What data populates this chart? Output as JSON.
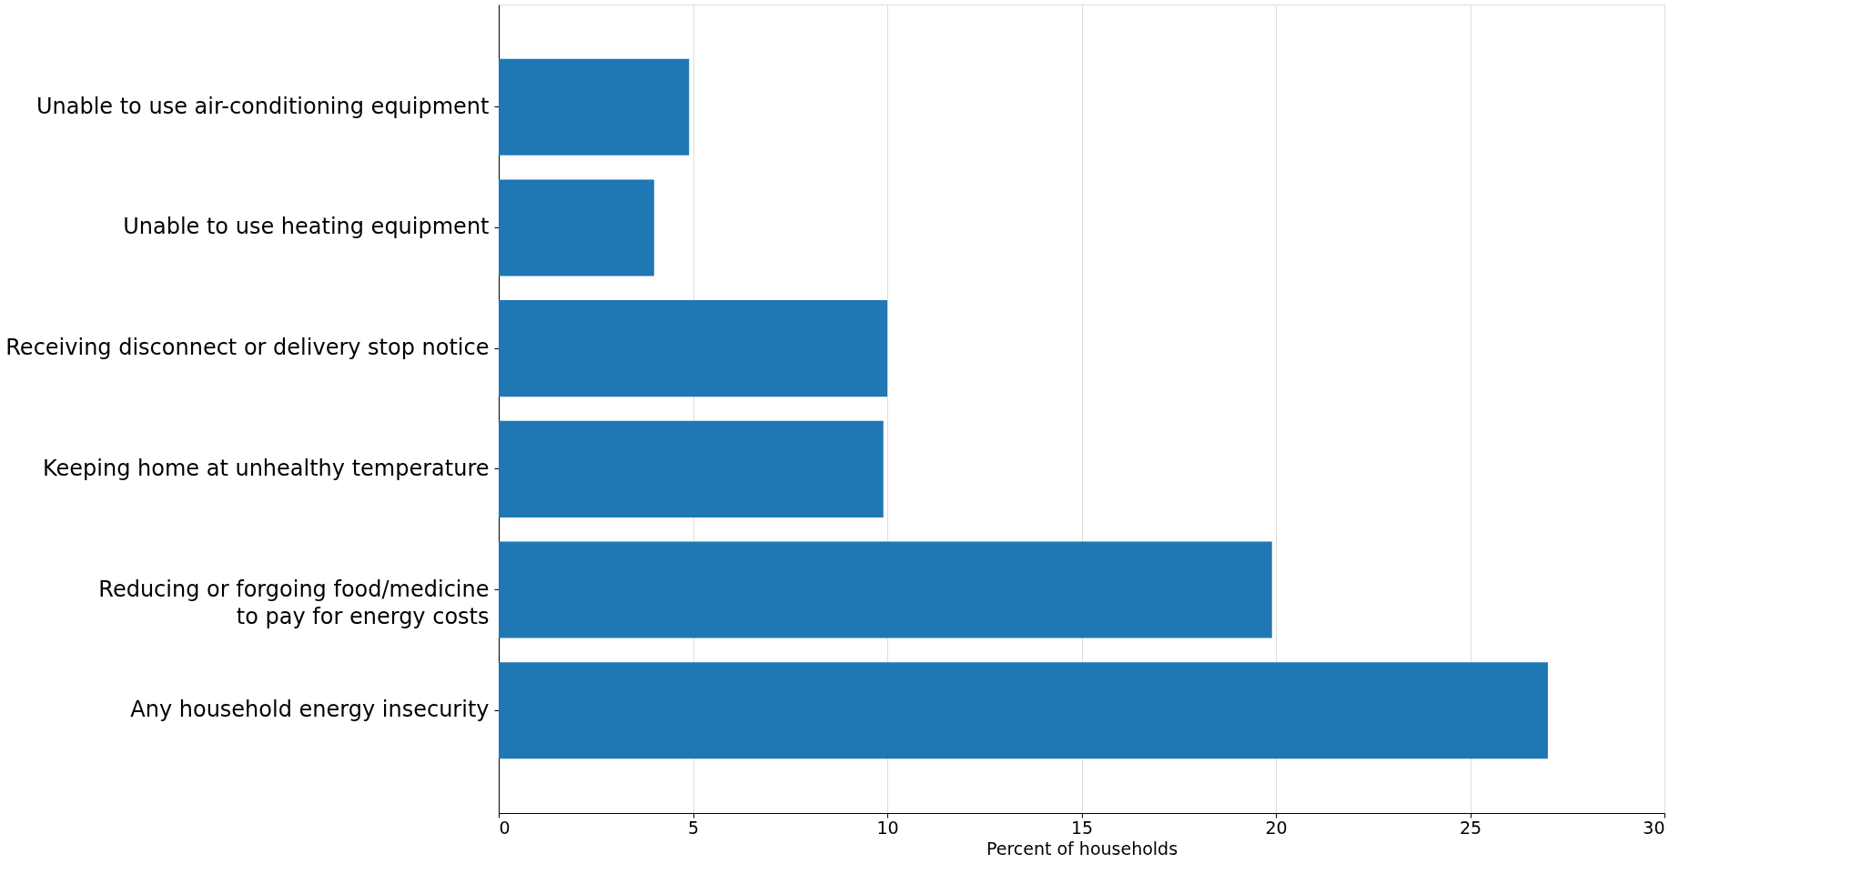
{
  "chart_data": {
    "type": "bar",
    "orientation": "horizontal",
    "xlabel": "Percent of households",
    "categories": [
      "Unable to use air-conditioning equipment",
      "Unable to use heating equipment",
      "Receiving disconnect or delivery stop notice",
      "Keeping home at unhealthy temperature",
      "Reducing or forgoing food/medicine\nto pay for energy costs",
      "Any household energy insecurity"
    ],
    "values": [
      4.9,
      4.0,
      10.0,
      9.9,
      19.9,
      27.0
    ],
    "color": "#1f77b4",
    "xlim": [
      0,
      30
    ],
    "xticks": [
      0,
      5,
      10,
      15,
      20,
      25,
      30
    ],
    "grid": "x"
  }
}
